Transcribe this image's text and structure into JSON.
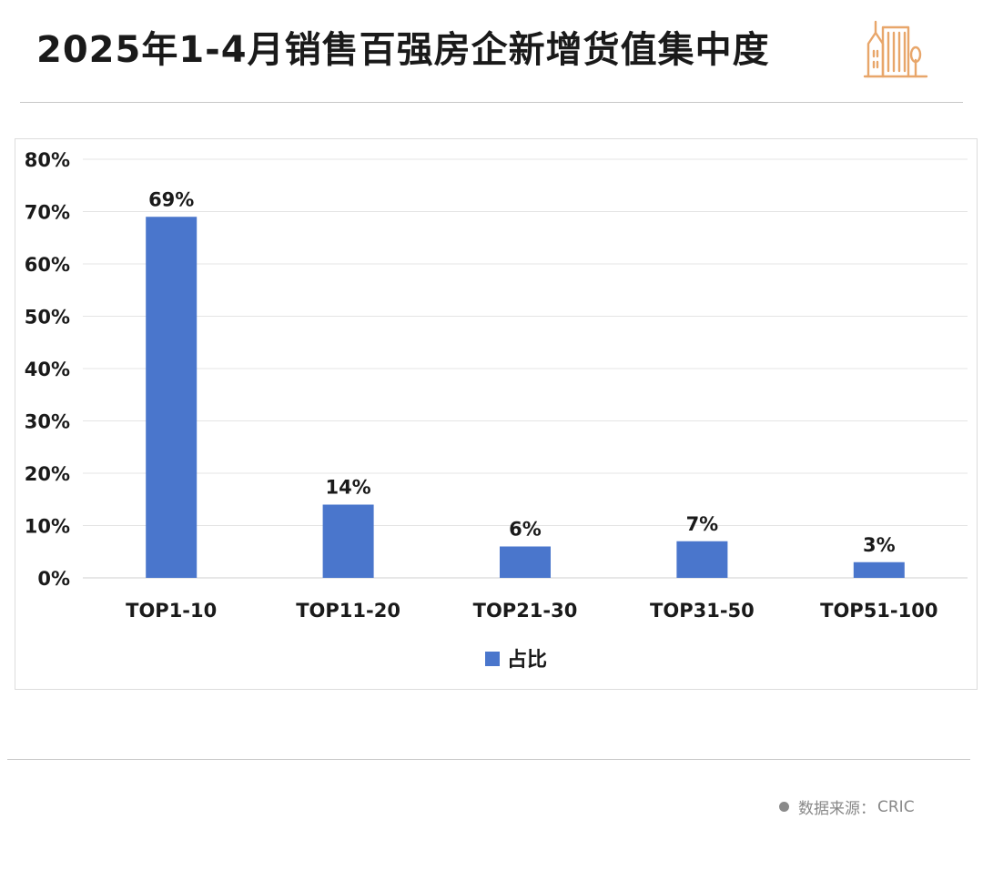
{
  "header": {
    "title": "2025年1-4月销售百强房企新增货值集中度",
    "logo_icon": "buildings-icon"
  },
  "footer": {
    "source_label": "数据来源：",
    "source_value": "CRIC"
  },
  "colors": {
    "bar": "#4a76cc",
    "logo": "#e8a66a",
    "grid": "#e4e4e4"
  },
  "chart_data": {
    "type": "bar",
    "categories": [
      "TOP1-10",
      "TOP11-20",
      "TOP21-30",
      "TOP31-50",
      "TOP51-100"
    ],
    "series": [
      {
        "name": "占比",
        "values": [
          69,
          14,
          6,
          7,
          3
        ]
      }
    ],
    "data_labels": [
      "69%",
      "14%",
      "6%",
      "7%",
      "3%"
    ],
    "y_ticks": [
      0,
      10,
      20,
      30,
      40,
      50,
      60,
      70,
      80
    ],
    "y_tick_labels": [
      "0%",
      "10%",
      "20%",
      "30%",
      "40%",
      "50%",
      "60%",
      "70%",
      "80%"
    ],
    "ylim": [
      0,
      80
    ],
    "grid": true,
    "legend_position": "bottom-center"
  }
}
